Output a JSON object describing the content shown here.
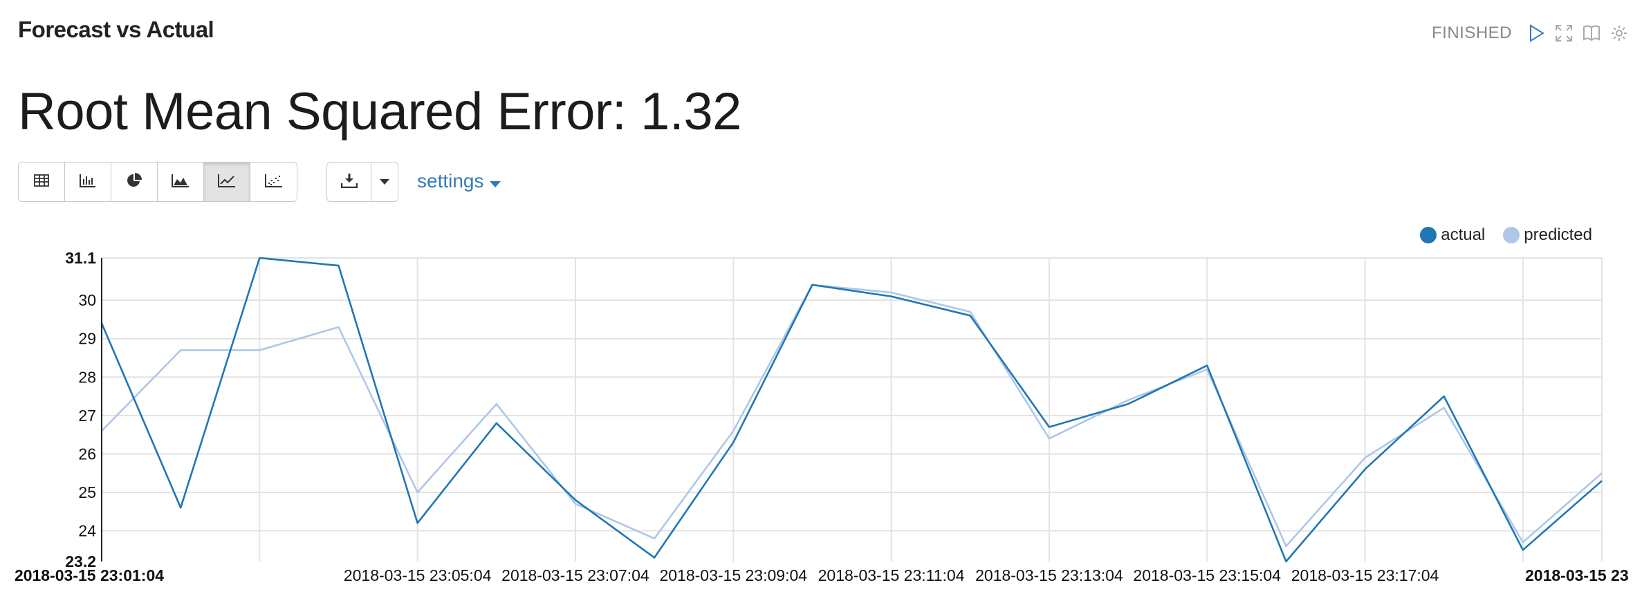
{
  "paragraph": {
    "title": "Forecast vs Actual",
    "status": "FINISHED"
  },
  "result": {
    "heading": "Root Mean Squared Error: 1.32"
  },
  "toolbar": {
    "viz_buttons": [
      "table",
      "bar-chart",
      "pie-chart",
      "area-chart",
      "line-chart",
      "scatter-chart"
    ],
    "active": "line-chart",
    "settings_label": "settings"
  },
  "colors": {
    "actual": "#1f77b4",
    "predicted": "#aec7e8",
    "link": "#337ab7"
  },
  "chart_data": {
    "type": "line",
    "x": [
      "2018-03-15 23:01:04",
      "2018-03-15 23:02:04",
      "2018-03-15 23:03:04",
      "2018-03-15 23:04:04",
      "2018-03-15 23:05:04",
      "2018-03-15 23:06:04",
      "2018-03-15 23:07:04",
      "2018-03-15 23:08:04",
      "2018-03-15 23:09:04",
      "2018-03-15 23:10:04",
      "2018-03-15 23:11:04",
      "2018-03-15 23:12:04",
      "2018-03-15 23:13:04",
      "2018-03-15 23:14:04",
      "2018-03-15 23:15:04",
      "2018-03-15 23:16:04",
      "2018-03-15 23:17:04",
      "2018-03-15 23:18:04",
      "2018-03-15 23:19:04",
      "2018-03-15 23:20:04"
    ],
    "x_tick_labels": [
      "2018-03-15 23:01:04",
      "2018-03-15 23:05:04",
      "2018-03-15 23:07:04",
      "2018-03-15 23:09:04",
      "2018-03-15 23:11:04",
      "2018-03-15 23:13:04",
      "2018-03-15 23:15:04",
      "2018-03-15 23:17:04",
      "2018-03-15 23"
    ],
    "y_tick_labels": [
      "31.1",
      "30",
      "29",
      "28",
      "27",
      "26",
      "25",
      "24",
      "23.2"
    ],
    "ylim": [
      23.2,
      31.1
    ],
    "series": [
      {
        "name": "actual",
        "values": [
          29.4,
          24.6,
          31.1,
          30.9,
          24.2,
          26.8,
          24.8,
          23.3,
          26.3,
          30.4,
          30.1,
          29.6,
          26.7,
          27.3,
          28.3,
          23.2,
          25.6,
          27.5,
          23.5,
          25.3
        ]
      },
      {
        "name": "predicted",
        "values": [
          26.6,
          28.7,
          28.7,
          29.3,
          25.0,
          27.3,
          24.7,
          23.8,
          26.6,
          30.4,
          30.2,
          29.7,
          26.4,
          27.4,
          28.2,
          23.6,
          25.9,
          27.2,
          23.7,
          25.5
        ]
      }
    ],
    "legend": "top-right",
    "grid": true
  }
}
